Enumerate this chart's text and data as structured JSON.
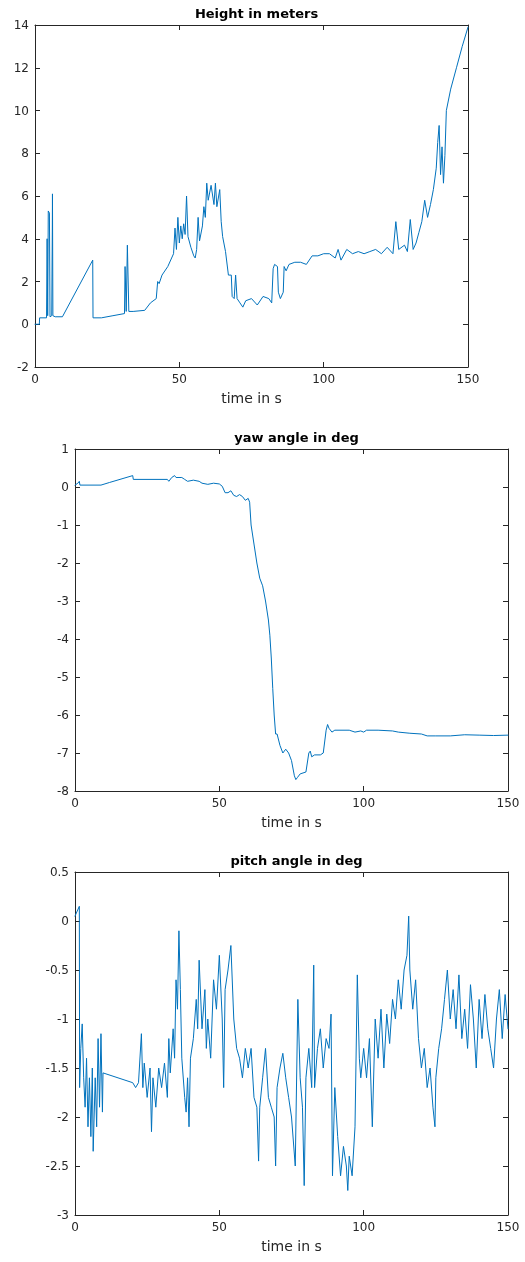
{
  "chart_data": [
    {
      "type": "line",
      "title": "Height in meters",
      "xlabel": "time in s",
      "color": "#0072bd",
      "xlim": [
        0,
        150
      ],
      "xticks": [
        0,
        50,
        100,
        150
      ],
      "ylim": [
        -2,
        14
      ],
      "yticks": [
        -2,
        0,
        2,
        4,
        6,
        8,
        10,
        12,
        14
      ],
      "x": [
        0,
        1.5,
        1.6,
        4,
        4.2,
        4.4,
        4.6,
        5,
        5.2,
        5.8,
        6,
        6.05,
        6.2,
        7,
        9.5,
        20,
        20.1,
        23,
        27,
        31,
        31.2,
        31.6,
        32,
        32.5,
        34,
        38,
        40,
        42,
        42.5,
        43,
        44,
        46,
        48,
        48.5,
        49,
        49.5,
        50,
        50.5,
        51,
        51.5,
        52,
        52.5,
        53,
        54,
        55,
        55.5,
        56,
        56.5,
        57,
        58,
        58.5,
        59,
        59.5,
        60,
        61,
        62,
        62.5,
        63,
        64,
        64.5,
        65,
        66,
        67,
        68,
        68.3,
        69,
        69.5,
        70,
        71,
        72,
        73,
        75,
        77,
        79,
        81,
        82,
        82.5,
        83,
        84,
        84.3,
        85,
        86,
        86.3,
        87,
        88,
        90,
        92,
        94,
        96,
        98,
        100,
        102,
        104,
        105,
        106,
        108,
        110,
        112,
        114,
        116,
        118,
        120,
        122,
        124,
        125,
        126,
        128,
        129,
        130,
        131,
        132,
        133,
        134,
        135,
        136,
        137,
        138,
        139,
        139.5,
        140,
        140.5,
        141,
        141.5,
        142,
        142.5,
        144,
        146,
        148,
        150
      ],
      "values": [
        0,
        0,
        0.3,
        0.3,
        4,
        0.4,
        5.3,
        5.2,
        0.35,
        0.4,
        4.5,
        6.1,
        0.4,
        0.35,
        0.35,
        3,
        0.3,
        0.3,
        0.4,
        0.5,
        2.7,
        0.6,
        3.7,
        0.6,
        0.6,
        0.65,
        1,
        1.2,
        2,
        1.9,
        2.3,
        2.7,
        3.3,
        4.5,
        3.5,
        5,
        3.8,
        4.6,
        4,
        4.7,
        4.2,
        6,
        4.1,
        3.6,
        3.2,
        3.1,
        3.5,
        5,
        3.9,
        4.6,
        5.5,
        5,
        6.6,
        5.8,
        6.5,
        5.6,
        6.6,
        5.5,
        6.3,
        4.8,
        4.1,
        3.4,
        2.3,
        2.3,
        1.3,
        1.2,
        2.3,
        1.2,
        1,
        0.8,
        1.1,
        1.2,
        0.9,
        1.3,
        1.2,
        1,
        2.6,
        2.8,
        2.7,
        1.5,
        1.2,
        1.5,
        2.7,
        2.5,
        2.8,
        2.9,
        2.9,
        2.8,
        3.2,
        3.2,
        3.3,
        3.3,
        3.1,
        3.5,
        3,
        3.5,
        3.3,
        3.4,
        3.3,
        3.4,
        3.5,
        3.3,
        3.6,
        3.3,
        4.8,
        3.5,
        3.7,
        3.4,
        4.9,
        3.5,
        3.8,
        4.3,
        4.8,
        5.8,
        5,
        5.6,
        6.3,
        7.3,
        8.5,
        9.3,
        7,
        8.3,
        6.6,
        7.9,
        10,
        11,
        12,
        13,
        13.9
      ]
    },
    {
      "type": "line",
      "title": "yaw angle in deg",
      "xlabel": "time in s",
      "color": "#0072bd",
      "xlim": [
        0,
        150
      ],
      "xticks": [
        0,
        50,
        100,
        150
      ],
      "ylim": [
        -8,
        1
      ],
      "yticks": [
        -8,
        -7,
        -6,
        -5,
        -4,
        -3,
        -2,
        -1,
        0,
        1
      ],
      "x": [
        0,
        1,
        1.5,
        1.7,
        9,
        12,
        20,
        20.2,
        32,
        32.5,
        33.5,
        34.5,
        35,
        37,
        38,
        39,
        41,
        43,
        44,
        46,
        48,
        50,
        51,
        52,
        53,
        54,
        55,
        56,
        57,
        58,
        59,
        60,
        60.5,
        61,
        62,
        63,
        64,
        65,
        66,
        67,
        67.5,
        68,
        68.5,
        69,
        69.5,
        70,
        71,
        72,
        73,
        74,
        75,
        76,
        76.5,
        77,
        78,
        80,
        81,
        81.5,
        82,
        83,
        85,
        86,
        87,
        87.5,
        88,
        89,
        90,
        95,
        97,
        99,
        100,
        101,
        105,
        110,
        112,
        116,
        120,
        122,
        125,
        130,
        135,
        140,
        145,
        150
      ],
      "values": [
        0.05,
        0.1,
        0.15,
        0.05,
        0.05,
        0.12,
        0.3,
        0.2,
        0.2,
        0.15,
        0.25,
        0.3,
        0.25,
        0.25,
        0.2,
        0.15,
        0.18,
        0.15,
        0.1,
        0.07,
        0.1,
        0.08,
        0.02,
        -0.15,
        -0.15,
        -0.1,
        -0.22,
        -0.25,
        -0.2,
        -0.25,
        -0.35,
        -0.3,
        -0.4,
        -1,
        -1.5,
        -2,
        -2.4,
        -2.6,
        -3,
        -3.5,
        -3.9,
        -4.5,
        -5.3,
        -6,
        -6.5,
        -6.5,
        -6.8,
        -7,
        -6.9,
        -7,
        -7.2,
        -7.6,
        -7.7,
        -7.65,
        -7.55,
        -7.5,
        -7,
        -6.95,
        -7.1,
        -7.05,
        -7.05,
        -7,
        -6.4,
        -6.25,
        -6.35,
        -6.45,
        -6.4,
        -6.4,
        -6.45,
        -6.42,
        -6.45,
        -6.4,
        -6.4,
        -6.42,
        -6.45,
        -6.48,
        -6.5,
        -6.55,
        -6.55,
        -6.55,
        -6.52,
        -6.53,
        -6.54,
        -6.53
      ]
    },
    {
      "type": "line",
      "title": "pitch angle in deg",
      "xlabel": "time in s",
      "color": "#0072bd",
      "xlim": [
        0,
        150
      ],
      "xticks": [
        0,
        50,
        100,
        150
      ],
      "ylim": [
        -3,
        0.5
      ],
      "yticks": [
        -3,
        -2.5,
        -2,
        -1.5,
        -1,
        -0.5,
        0,
        0.5
      ],
      "x": [
        0,
        1.5,
        1.6,
        2,
        2.5,
        3,
        3.5,
        4,
        4.5,
        5,
        5.5,
        6,
        6.3,
        7,
        7.5,
        8,
        8.5,
        9,
        9.5,
        9.7,
        20,
        21,
        22,
        23,
        23.5,
        24,
        25,
        26,
        26.5,
        27,
        28,
        29,
        30,
        31,
        32,
        32.5,
        33,
        34,
        34.5,
        35,
        35.5,
        36,
        36.5,
        37,
        38,
        38.5,
        39,
        39.5,
        40,
        41,
        42,
        42.5,
        43,
        44,
        45,
        45.5,
        46,
        47,
        48,
        49,
        50,
        51,
        51.5,
        52,
        53,
        54,
        55,
        56,
        57,
        58,
        59,
        60,
        61,
        62,
        63,
        63.6,
        64,
        65,
        66,
        67,
        68,
        69,
        69.5,
        70,
        71,
        72,
        73,
        74,
        75,
        76.3,
        77.2,
        78,
        78.8,
        79.4,
        80,
        81,
        82,
        82.7,
        83,
        84,
        85,
        86,
        87,
        88,
        88.7,
        89.2,
        90,
        91,
        92,
        93,
        94,
        94.5,
        95,
        96,
        97,
        97.8,
        98.5,
        99,
        100,
        101,
        102,
        103,
        104,
        105,
        106,
        107,
        108,
        109,
        110,
        111,
        112,
        113,
        114,
        115,
        115.6,
        116,
        117,
        118,
        119,
        120,
        121,
        122,
        123,
        124,
        124.7,
        125,
        126,
        127,
        128,
        129,
        130,
        131,
        132,
        133,
        134,
        135,
        136,
        137,
        138,
        139,
        140,
        141,
        142,
        143,
        144,
        145,
        146,
        147,
        148,
        149,
        150
      ],
      "values": [
        0.05,
        0.15,
        -1.7,
        -1.3,
        -1.05,
        -1.6,
        -1.9,
        -1.4,
        -2.1,
        -1.6,
        -2.2,
        -1.5,
        -2.35,
        -1.6,
        -2.1,
        -1.2,
        -1.9,
        -1.15,
        -1.95,
        -1.55,
        -1.65,
        -1.7,
        -1.65,
        -1.15,
        -1.7,
        -1.45,
        -1.8,
        -1.5,
        -2.15,
        -1.6,
        -1.9,
        -1.5,
        -1.7,
        -1.45,
        -1.8,
        -1.2,
        -1.55,
        -1.1,
        -1.4,
        -0.6,
        -0.9,
        -0.1,
        -0.7,
        -1.4,
        -1.8,
        -1.95,
        -1.6,
        -2.1,
        -1.4,
        -1.2,
        -0.8,
        -1.1,
        -0.4,
        -1.1,
        -0.7,
        -1.3,
        -1,
        -1.4,
        -0.6,
        -0.9,
        -0.35,
        -1,
        -1.7,
        -0.7,
        -0.5,
        -0.25,
        -1,
        -1.3,
        -1.4,
        -1.6,
        -1.3,
        -1.5,
        -1.3,
        -1.8,
        -1.9,
        -2.45,
        -1.9,
        -1.6,
        -1.3,
        -1.8,
        -1.9,
        -2,
        -2.5,
        -1.7,
        -1.5,
        -1.35,
        -1.6,
        -1.8,
        -2,
        -2.5,
        -0.8,
        -1.6,
        -1.9,
        -2.7,
        -1.6,
        -1.3,
        -1.7,
        -0.45,
        -1.7,
        -1.3,
        -1.1,
        -1.5,
        -1.2,
        -1.3,
        -0.95,
        -2.6,
        -1.7,
        -2.2,
        -2.6,
        -2.3,
        -2.5,
        -2.75,
        -2.4,
        -2.6,
        -2.1,
        -0.55,
        -1.4,
        -1.6,
        -1.3,
        -1.6,
        -1.2,
        -2.1,
        -1,
        -1.4,
        -0.9,
        -1.5,
        -0.95,
        -1.25,
        -0.8,
        -1,
        -0.6,
        -0.9,
        -0.5,
        -0.35,
        0.05,
        -0.5,
        -0.9,
        -0.6,
        -1.2,
        -1.5,
        -1.3,
        -1.7,
        -1.5,
        -1.9,
        -2.1,
        -1.6,
        -1.3,
        -1.1,
        -0.8,
        -0.5,
        -1,
        -0.7,
        -1.1,
        -0.55,
        -1.2,
        -0.9,
        -1.3,
        -0.65,
        -1,
        -1.5,
        -0.8,
        -1.2,
        -0.75,
        -1.1,
        -1.3,
        -1.5,
        -1,
        -0.7,
        -1.2,
        -0.75,
        -1.1
      ]
    }
  ]
}
